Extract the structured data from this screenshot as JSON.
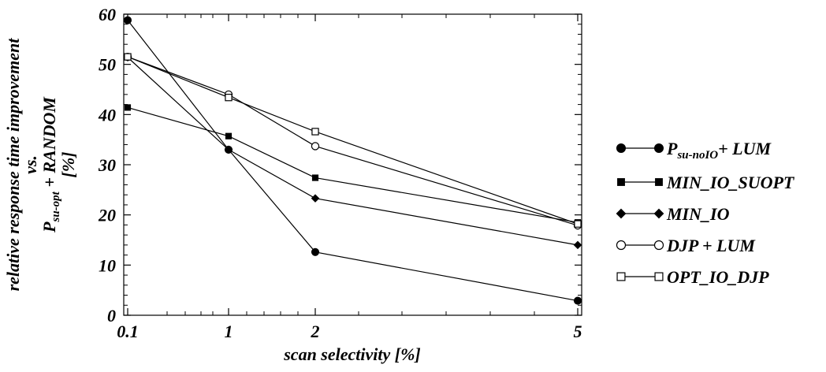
{
  "chart_data": {
    "type": "line",
    "xlabel": "scan selectivity [%]",
    "ylabel": {
      "line1": "relative response time improvement",
      "line2": "vs.",
      "line3_main": "P",
      "line3_sub": "su-opt",
      "line3_rest": " + RANDOM",
      "line4": "[%]"
    },
    "x": [
      0.1,
      1,
      2,
      5
    ],
    "x_tick_labels": [
      "0.1",
      "1",
      "2",
      "5"
    ],
    "y_ticks": [
      0,
      10,
      20,
      30,
      40,
      50,
      60
    ],
    "ylim": [
      0,
      60
    ],
    "grid": false,
    "legend_position": "right",
    "series": [
      {
        "name": "P_su-noIO + LUM",
        "name_main": "P",
        "name_sub": "su-noIO",
        "name_rest": "+ LUM",
        "marker": "filled-circle",
        "values": [
          58.8,
          33.0,
          12.6,
          2.9
        ]
      },
      {
        "name": "MIN_IO_SUOPT",
        "marker": "filled-square",
        "values": [
          41.4,
          35.7,
          27.4,
          18.5
        ]
      },
      {
        "name": "MIN_IO",
        "marker": "filled-diamond",
        "values": [
          51.4,
          33.0,
          23.3,
          14.0
        ]
      },
      {
        "name": "DJP + LUM",
        "marker": "open-circle",
        "values": [
          51.5,
          44.0,
          33.7,
          17.9
        ]
      },
      {
        "name": "OPT_IO_DJP",
        "marker": "open-square",
        "values": [
          51.5,
          43.4,
          36.6,
          18.2
        ]
      }
    ]
  }
}
